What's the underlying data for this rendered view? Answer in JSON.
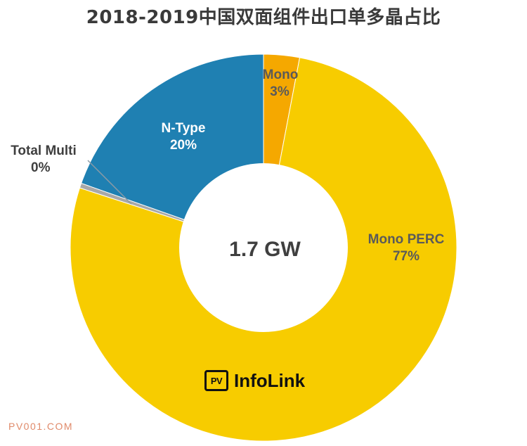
{
  "chart_data": {
    "type": "pie",
    "title": "2018-2019中国双面组件出口单多晶占比",
    "center_label": "1.7 GW",
    "slices": [
      {
        "name": "Mono",
        "label": "3%",
        "value": 3,
        "color": "#f5a800",
        "text_color": "#5a5a5a"
      },
      {
        "name": "Mono PERC",
        "label": "77%",
        "value": 77,
        "color": "#f7cc00",
        "text_color": "#5a5a5a"
      },
      {
        "name": "Total Multi",
        "label": "0%",
        "value": 0.4,
        "color": "#a8a8a8",
        "text_color": "#3f3f3f"
      },
      {
        "name": "N-Type",
        "label": "20%",
        "value": 19.6,
        "color": "#1f80b2",
        "text_color": "#ffffff"
      }
    ]
  },
  "logo": {
    "box_text": "PV",
    "text": "InfoLink"
  },
  "watermark": "PV001.COM"
}
